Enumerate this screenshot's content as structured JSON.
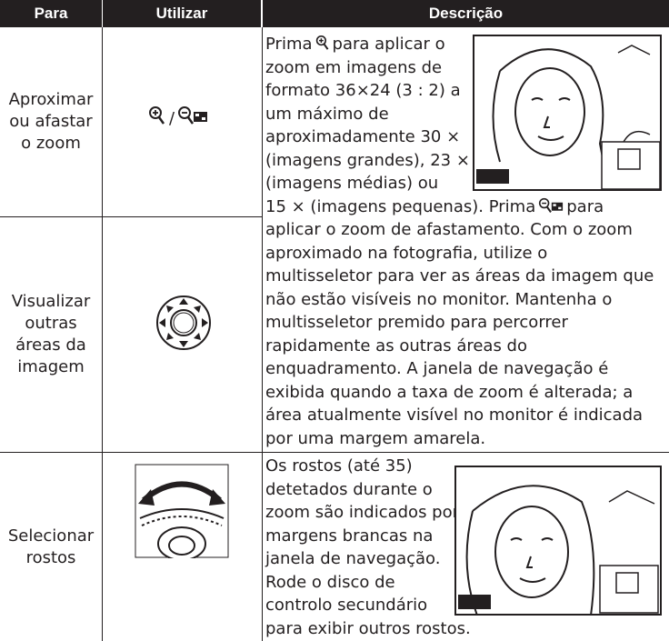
{
  "header": {
    "col1": "Para",
    "col2": "Utilizar",
    "col3": "Descrição"
  },
  "rows": [
    {
      "para": [
        "Aproximar",
        "ou afastar",
        "o zoom"
      ],
      "separator": "/"
    },
    {
      "para": [
        "Visualizar",
        "outras",
        "áreas da",
        "imagem"
      ]
    },
    {
      "para": [
        "Selecionar",
        "rostos"
      ]
    }
  ],
  "descriptions": [
    {
      "lines": [
        [
          "Prima",
          "para aplicar o"
        ],
        "zoom em imagens de",
        "formato 36×24 (3 : 2) a",
        "um máximo de",
        "aproximadamente 30 ×",
        "(imagens grandes), 23 ×",
        "(imagens médias) ou",
        [
          "15 × (imagens pequenas). Prima",
          "para"
        ],
        "aplicar o zoom de afastamento. Com o zoom",
        "aproximado na fotografia, utilize o",
        "multisseletor para ver as áreas da imagem que",
        "não estão visíveis no monitor. Mantenha o",
        "multisseletor premido para percorrer",
        "rapidamente as outras áreas do",
        "enquadramento. A janela de navegação é",
        "exibida quando a taxa de zoom é alterada; a",
        "área atualmente visível no monitor é indicada",
        "por uma margem amarela."
      ]
    },
    {
      "lines": [
        "Os rostos (até 35)",
        "detetados durante o",
        "zoom são indicados por",
        "margens brancas na",
        "janela de navegação.",
        "Rode o disco de",
        "controlo secundário",
        "para exibir outros rostos."
      ]
    }
  ]
}
